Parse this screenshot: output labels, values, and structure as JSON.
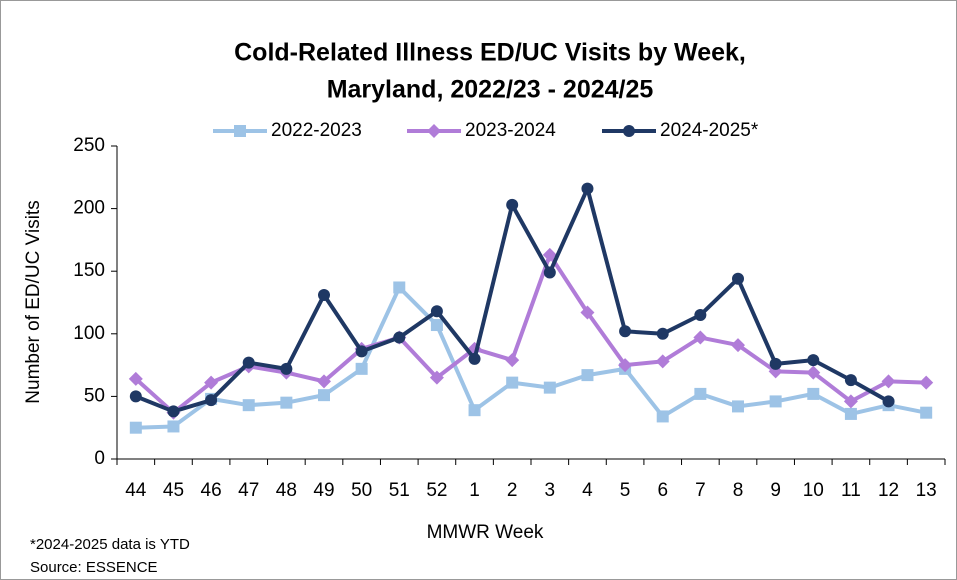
{
  "chart_data": {
    "type": "line",
    "title": [
      "Cold-Related Illness ED/UC Visits by Week,",
      "Maryland, 2022/23 - 2024/25"
    ],
    "x_label": "MMWR Week",
    "y_label": "Number of ED/UC Visits",
    "footnotes": [
      "*2024-2025 data is YTD",
      "Source: ESSENCE"
    ],
    "categories": [
      "44",
      "45",
      "46",
      "47",
      "48",
      "49",
      "50",
      "51",
      "52",
      "1",
      "2",
      "3",
      "4",
      "5",
      "6",
      "7",
      "8",
      "9",
      "10",
      "11",
      "12",
      "13"
    ],
    "series": [
      {
        "name": "2022-2023",
        "color": "#9dc3e6",
        "marker": "square",
        "values": [
          25,
          26,
          48,
          43,
          45,
          51,
          72,
          137,
          107,
          39,
          61,
          57,
          67,
          72,
          34,
          52,
          42,
          46,
          52,
          36,
          43,
          37
        ]
      },
      {
        "name": "2023-2024",
        "color": "#b07cd8",
        "marker": "diamond",
        "values": [
          64,
          37,
          61,
          74,
          69,
          62,
          88,
          97,
          65,
          88,
          79,
          163,
          117,
          75,
          78,
          97,
          91,
          70,
          69,
          46,
          62,
          61
        ]
      },
      {
        "name": "2024-2025*",
        "color": "#1f3864",
        "marker": "circle",
        "values": [
          50,
          38,
          47,
          77,
          72,
          131,
          86,
          97,
          118,
          80,
          203,
          149,
          216,
          102,
          100,
          115,
          144,
          76,
          79,
          63,
          46,
          null
        ]
      }
    ],
    "ylim": [
      0,
      250
    ],
    "yticks": [
      0,
      50,
      100,
      150,
      200,
      250
    ],
    "grid": false,
    "legend": "top"
  }
}
